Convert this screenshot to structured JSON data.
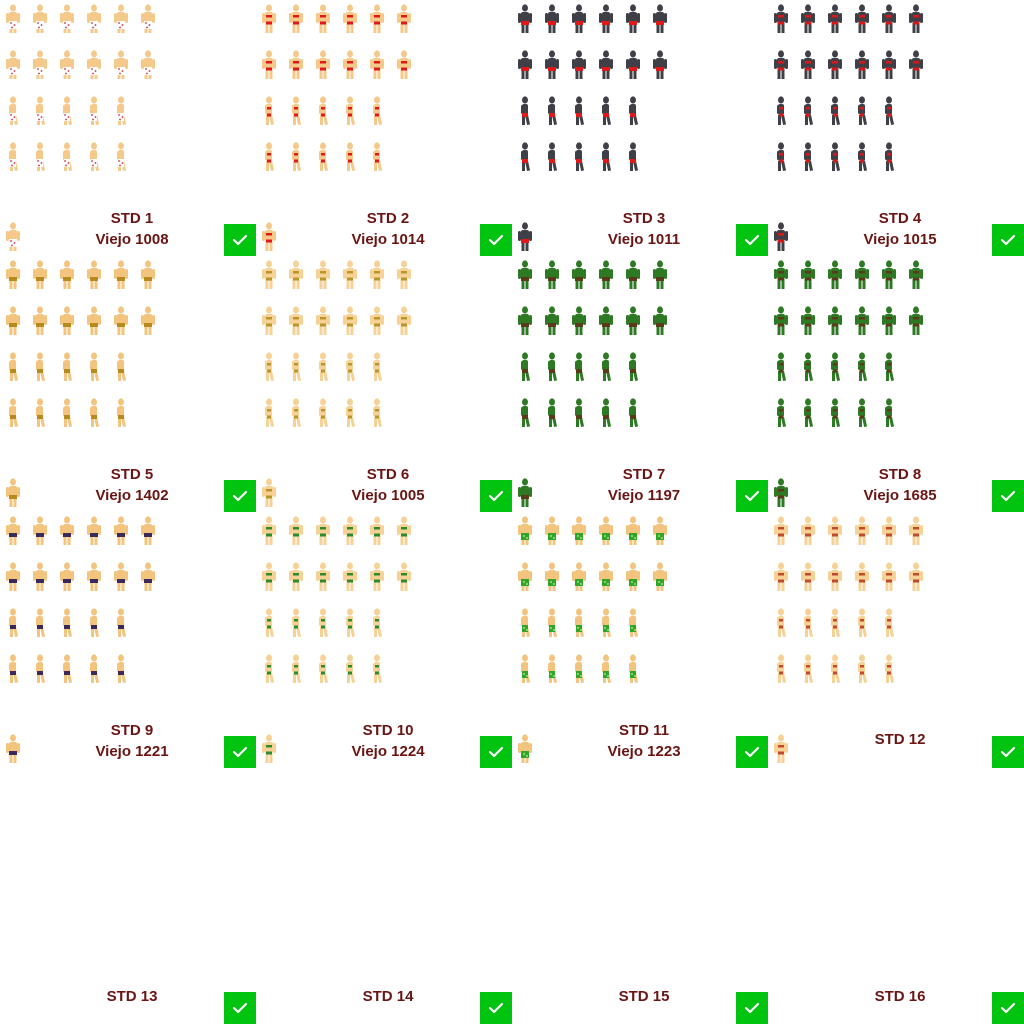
{
  "cells": [
    {
      "std": "STD 1",
      "viejo": "Viejo 1008",
      "selected": true,
      "outfit": "polka",
      "skin": "#f4c98a",
      "accent": "#c7323c",
      "accent2": "#ffffff"
    },
    {
      "std": "STD 2",
      "viejo": "Viejo 1014",
      "selected": true,
      "outfit": "bikini",
      "skin": "#f4c98a",
      "accent": "#e01818",
      "accent2": "#e01818"
    },
    {
      "std": "STD 3",
      "viejo": "Viejo 1011",
      "selected": true,
      "outfit": "trunks",
      "skin": "#3f3f48",
      "accent": "#e01818",
      "accent2": "#e01818"
    },
    {
      "std": "STD 4",
      "viejo": "Viejo 1015",
      "selected": true,
      "outfit": "bikini",
      "skin": "#3f3f48",
      "accent": "#d81818",
      "accent2": "#d81818"
    },
    {
      "std": "STD 5",
      "viejo": "Viejo 1402",
      "selected": true,
      "outfit": "trunks",
      "skin": "#f2c47e",
      "accent": "#b78a1e",
      "accent2": "#6a4a10"
    },
    {
      "std": "STD 6",
      "viejo": "Viejo 1005",
      "selected": true,
      "outfit": "bikini",
      "skin": "#f6d296",
      "accent": "#b9962a",
      "accent2": "#b9962a"
    },
    {
      "std": "STD 7",
      "viejo": "Viejo 1197",
      "selected": true,
      "outfit": "trunks",
      "skin": "#2e7a24",
      "accent": "#5a3a1a",
      "accent2": "#1f5a18"
    },
    {
      "std": "STD 8",
      "viejo": "Viejo 1685",
      "selected": true,
      "outfit": "bikini",
      "skin": "#2e7a24",
      "accent": "#5a3a1a",
      "accent2": "#5a3a1a"
    },
    {
      "std": "STD 9",
      "viejo": "Viejo 1221",
      "selected": true,
      "outfit": "trunks",
      "skin": "#f2c47e",
      "accent": "#3a2a5a",
      "accent2": "#c23838"
    },
    {
      "std": "STD 10",
      "viejo": "Viejo 1224",
      "selected": true,
      "outfit": "bikini",
      "skin": "#f6d296",
      "accent": "#2f8a2a",
      "accent2": "#2f8a2a"
    },
    {
      "std": "STD 11",
      "viejo": "Viejo 1223",
      "selected": true,
      "outfit": "shorts",
      "skin": "#f2c47e",
      "accent": "#2fa52a",
      "accent2": "#a6e07a"
    },
    {
      "std": "STD 12",
      "viejo": "",
      "selected": true,
      "outfit": "bikini",
      "skin": "#f6d296",
      "accent": "#c24a2a",
      "accent2": "#c24a2a"
    },
    {
      "std": "STD 13",
      "viejo": "",
      "selected": true,
      "outfit": "none",
      "skin": "#ffffff",
      "accent": "#ffffff",
      "accent2": "#ffffff"
    },
    {
      "std": "STD 14",
      "viejo": "",
      "selected": true,
      "outfit": "none",
      "skin": "#ffffff",
      "accent": "#ffffff",
      "accent2": "#ffffff"
    },
    {
      "std": "STD 15",
      "viejo": "",
      "selected": true,
      "outfit": "none",
      "skin": "#ffffff",
      "accent": "#ffffff",
      "accent2": "#ffffff"
    },
    {
      "std": "STD 16",
      "viejo": "",
      "selected": true,
      "outfit": "none",
      "skin": "#ffffff",
      "accent": "#ffffff",
      "accent2": "#ffffff"
    }
  ],
  "colors": {
    "check": "#00c40f",
    "label": "#6b1414"
  }
}
